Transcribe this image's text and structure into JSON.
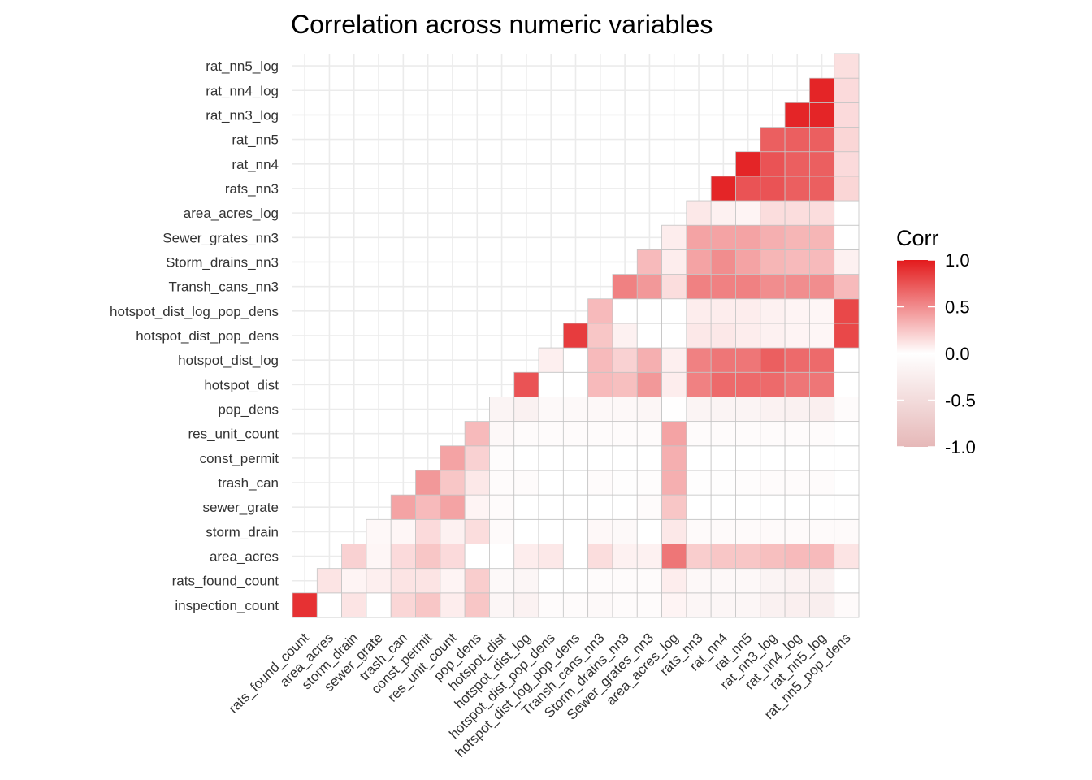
{
  "chart_data": {
    "type": "heatmap",
    "title": "Correlation across numeric variables",
    "variables": [
      "inspection_count",
      "rats_found_count",
      "area_acres",
      "storm_drain",
      "sewer_grate",
      "trash_can",
      "const_permit",
      "res_unit_count",
      "pop_dens",
      "hotspot_dist",
      "hotspot_dist_log",
      "hotspot_dist_pop_dens",
      "hotspot_dist_log_pop_dens",
      "Transh_cans_nn3",
      "Storm_drains_nn3",
      "Sewer_grates_nn3",
      "area_acres_log",
      "rats_nn3",
      "rat_nn4",
      "rat_nn5",
      "rat_nn3_log",
      "rat_nn4_log",
      "rat_nn5_log",
      "rat_nn5_pop_dens"
    ],
    "y_labels": [
      "inspection_count",
      "rats_found_count",
      "area_acres",
      "storm_drain",
      "sewer_grate",
      "trash_can",
      "const_permit",
      "res_unit_count",
      "pop_dens",
      "hotspot_dist",
      "hotspot_dist_log",
      "hotspot_dist_pop_dens",
      "hotspot_dist_log_pop_dens",
      "Transh_cans_nn3",
      "Storm_drains_nn3",
      "Sewer_grates_nn3",
      "area_acres_log",
      "rats_nn3",
      "rat_nn4",
      "rat_nn5",
      "rat_nn3_log",
      "rat_nn4_log",
      "rat_nn5_log"
    ],
    "x_labels": [
      "rats_found_count",
      "area_acres",
      "storm_drain",
      "sewer_grate",
      "trash_can",
      "const_permit",
      "res_unit_count",
      "pop_dens",
      "hotspot_dist",
      "hotspot_dist_log",
      "hotspot_dist_pop_dens",
      "hotspot_dist_log_pop_dens",
      "Transh_cans_nn3",
      "Storm_drains_nn3",
      "Sewer_grates_nn3",
      "area_acres_log",
      "rats_nn3",
      "rat_nn4",
      "rat_nn5",
      "rat_nn3_log",
      "rat_nn4_log",
      "rat_nn5_log",
      "rat_nn5_pop_dens"
    ],
    "matrix": [
      [
        0.9
      ],
      [
        0.0,
        0.12
      ],
      [
        0.12,
        0.05,
        0.2
      ],
      [
        0.0,
        0.07,
        0.04,
        0.03
      ],
      [
        0.18,
        0.12,
        0.16,
        0.04,
        0.4
      ],
      [
        0.25,
        0.12,
        0.25,
        0.16,
        0.3,
        0.45
      ],
      [
        0.08,
        0.05,
        0.16,
        0.06,
        0.4,
        0.25,
        0.4
      ],
      [
        0.25,
        0.22,
        0.0,
        0.15,
        0.05,
        0.1,
        0.2,
        0.3
      ],
      [
        -0.12,
        -0.08,
        0.0,
        0.02,
        -0.05,
        -0.06,
        -0.04,
        -0.1,
        -0.15
      ],
      [
        -0.18,
        -0.12,
        0.08,
        0.0,
        0.0,
        -0.05,
        0.0,
        -0.05,
        -0.2,
        0.75
      ],
      [
        -0.05,
        0.0,
        0.1,
        0.0,
        0.0,
        0.0,
        0.0,
        -0.05,
        -0.08,
        0.0,
        0.07
      ],
      [
        -0.05,
        0.0,
        0.0,
        0.0,
        0.0,
        0.0,
        0.0,
        -0.05,
        -0.08,
        0.0,
        0.0,
        0.85
      ],
      [
        -0.08,
        -0.05,
        0.15,
        0.03,
        0.0,
        -0.05,
        0.0,
        -0.05,
        -0.1,
        0.3,
        0.3,
        0.25,
        0.3
      ],
      [
        -0.05,
        -0.05,
        0.06,
        -0.08,
        0.0,
        -0.03,
        0.0,
        -0.05,
        -0.1,
        0.28,
        0.2,
        0.06,
        0.0,
        0.55
      ],
      [
        -0.06,
        -0.05,
        0.06,
        0.0,
        -0.06,
        -0.04,
        0.0,
        -0.05,
        -0.12,
        0.45,
        0.35,
        0.0,
        0.0,
        0.45,
        0.3
      ],
      [
        0.05,
        0.08,
        0.6,
        0.1,
        0.25,
        0.35,
        0.35,
        0.4,
        -0.02,
        0.08,
        0.07,
        0.0,
        0.0,
        0.15,
        0.08,
        0.08
      ],
      [
        -0.12,
        -0.1,
        0.22,
        0.02,
        0.0,
        -0.03,
        0.0,
        -0.05,
        -0.15,
        0.55,
        0.55,
        0.1,
        0.08,
        0.55,
        0.4,
        0.4,
        0.1
      ],
      [
        -0.12,
        -0.1,
        0.25,
        0.02,
        0.0,
        -0.03,
        0.0,
        -0.05,
        -0.15,
        0.65,
        0.6,
        0.1,
        0.08,
        0.55,
        0.5,
        0.4,
        0.06,
        0.95
      ],
      [
        -0.12,
        -0.1,
        0.25,
        0.02,
        0.0,
        -0.04,
        0.0,
        -0.05,
        -0.15,
        0.65,
        0.6,
        0.08,
        0.08,
        0.55,
        0.4,
        0.4,
        0.05,
        0.75,
        0.95
      ],
      [
        -0.2,
        -0.15,
        0.28,
        0.02,
        0.0,
        -0.05,
        0.0,
        -0.06,
        -0.18,
        0.65,
        0.7,
        0.06,
        0.06,
        0.5,
        0.32,
        0.35,
        0.15,
        0.75,
        0.75,
        0.7
      ],
      [
        -0.22,
        -0.18,
        0.3,
        0.02,
        0.0,
        -0.06,
        0.0,
        -0.06,
        -0.2,
        0.6,
        0.65,
        0.05,
        0.05,
        0.5,
        0.3,
        0.32,
        0.15,
        0.7,
        0.7,
        0.7,
        0.95
      ],
      [
        -0.24,
        -0.2,
        0.3,
        0.02,
        0.0,
        -0.06,
        0.0,
        -0.06,
        -0.22,
        0.6,
        0.65,
        0.04,
        0.04,
        0.5,
        0.3,
        0.32,
        0.15,
        0.7,
        0.7,
        0.7,
        0.95,
        0.95
      ],
      [
        0.02,
        0.0,
        0.12,
        0.02,
        0.0,
        0.0,
        0.0,
        0.0,
        -0.05,
        0.0,
        0.0,
        0.8,
        0.8,
        0.3,
        0.06,
        0.0,
        0.0,
        0.18,
        0.16,
        0.18,
        0.16,
        0.16,
        0.14
      ]
    ],
    "legend": {
      "title": "Corr",
      "ticks": [
        "1.0",
        "0.5",
        "0.0",
        "-0.5",
        "-1.0"
      ],
      "tick_values": [
        1.0,
        0.5,
        0.0,
        -0.5,
        -1.0
      ],
      "placement": "right",
      "colors": {
        "high": "#E31A1C",
        "mid": "#FFFFFF",
        "low": "#E6B8B8"
      }
    },
    "grid": true
  }
}
